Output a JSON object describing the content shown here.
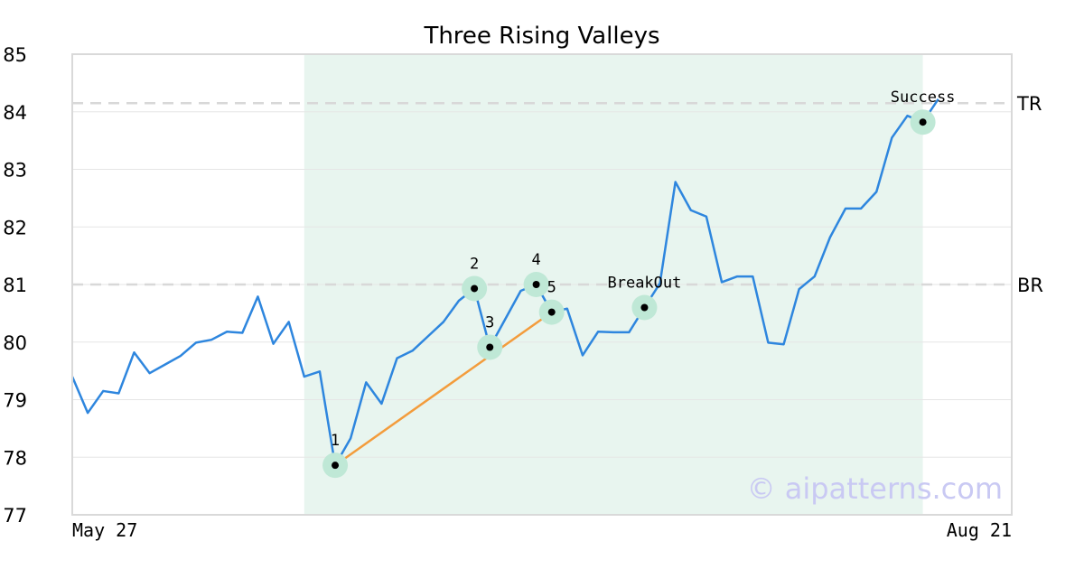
{
  "chart_data": {
    "type": "line",
    "title": "Three Rising Valleys",
    "xlabel": "",
    "ylabel": "",
    "ylim": [
      77,
      85
    ],
    "yticks": [
      "77",
      "78",
      "79",
      "80",
      "81",
      "82",
      "83",
      "84",
      "85"
    ],
    "x_tick_labels": [
      "May 27",
      "Aug 21"
    ],
    "grid": true,
    "watermark": "© aipatterns.com",
    "colors": {
      "price": "#2e86de",
      "trend": "#f39c3c",
      "highlight": "#e8f5ef",
      "marker_halo": "#bfe8d6",
      "level_line": "#d8d8d8"
    },
    "levels": [
      {
        "label": "TR",
        "value": 84.15
      },
      {
        "label": "BR",
        "value": 81.0
      }
    ],
    "highlight_range": {
      "start_index": 15,
      "end_index": 55
    },
    "series": [
      {
        "values": [
          79.4,
          78.77,
          79.15,
          79.11,
          79.82,
          79.46,
          79.61,
          79.76,
          79.99,
          80.04,
          80.18,
          80.16,
          80.79,
          79.97,
          80.35,
          79.4,
          79.49,
          77.86,
          78.33,
          79.3,
          78.93,
          79.72,
          79.85,
          80.1,
          80.35,
          80.72,
          80.93,
          79.91,
          80.4,
          80.89,
          81.0,
          80.52,
          80.58,
          79.77,
          80.18,
          80.17,
          80.17,
          80.6,
          81.02,
          82.78,
          82.29,
          82.18,
          81.04,
          81.14,
          81.14,
          79.99,
          79.96,
          80.92,
          81.14,
          81.82,
          82.32,
          82.32,
          82.61,
          83.55,
          83.93,
          83.82,
          84.22
        ]
      }
    ],
    "trendline": {
      "from_index": 17,
      "to_index": 31
    },
    "annotations": [
      {
        "label": "1",
        "index": 17,
        "value": 77.86
      },
      {
        "label": "2",
        "index": 26,
        "value": 80.93
      },
      {
        "label": "3",
        "index": 27,
        "value": 79.91
      },
      {
        "label": "4",
        "index": 30,
        "value": 81.0
      },
      {
        "label": "5",
        "index": 31,
        "value": 80.52
      },
      {
        "label": "BreakOut",
        "index": 37,
        "value": 80.6
      },
      {
        "label": "Success",
        "index": 55,
        "value": 83.82
      }
    ]
  }
}
